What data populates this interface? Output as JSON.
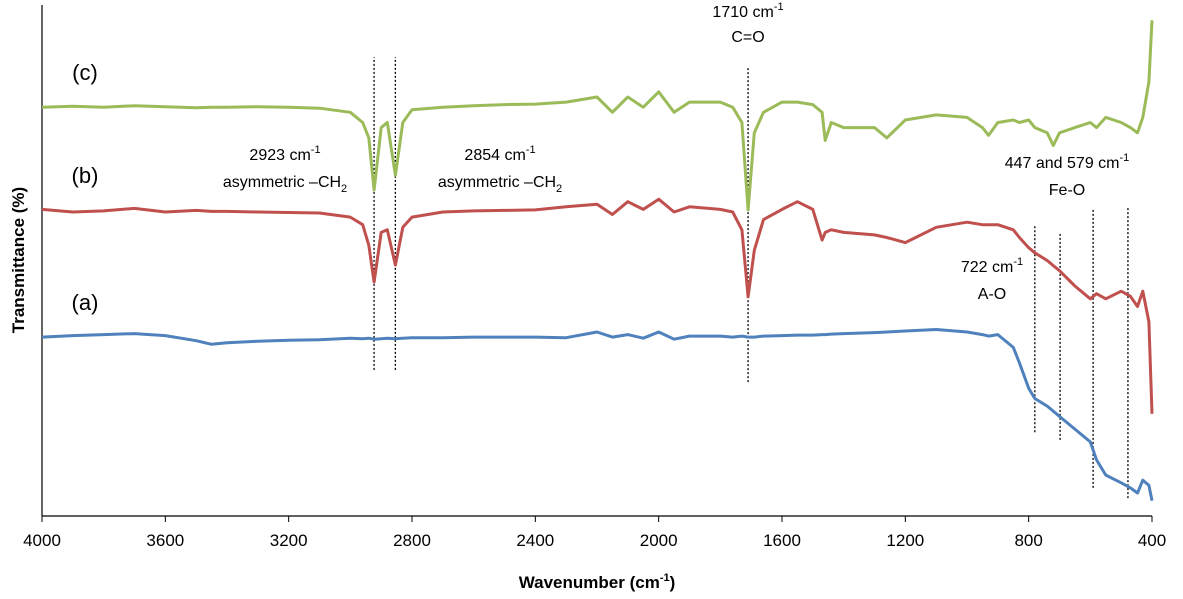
{
  "chart_data": {
    "type": "line",
    "x_label": [
      "Wavenumber (cm",
      "-1",
      ")"
    ],
    "y_label": "Transmittance (%)",
    "xlim": [
      4000,
      400
    ],
    "ylim": [
      0,
      100
    ],
    "xticks": [
      4000,
      3600,
      3200,
      2800,
      2400,
      2000,
      1600,
      1200,
      800,
      400
    ],
    "x": [
      4000,
      3900,
      3800,
      3700,
      3600,
      3500,
      3450,
      3400,
      3300,
      3200,
      3100,
      3000,
      2960,
      2940,
      2923,
      2900,
      2880,
      2854,
      2830,
      2800,
      2700,
      2600,
      2500,
      2400,
      2300,
      2200,
      2150,
      2100,
      2050,
      2000,
      1950,
      1900,
      1800,
      1760,
      1730,
      1710,
      1690,
      1660,
      1600,
      1550,
      1500,
      1470,
      1460,
      1440,
      1400,
      1300,
      1260,
      1200,
      1100,
      1000,
      950,
      930,
      900,
      850,
      830,
      800,
      780,
      740,
      720,
      700,
      650,
      600,
      580,
      550,
      500,
      470,
      447,
      430,
      410,
      400
    ],
    "series": [
      {
        "name": "(c)",
        "color": "#9bbb59",
        "values": [
          80,
          80.2,
          80,
          80.3,
          80.1,
          79.9,
          80,
          80,
          80.1,
          80,
          79.8,
          79,
          77,
          74,
          63.8,
          76,
          77,
          66.7,
          77,
          79.5,
          80,
          80.3,
          80.5,
          80.6,
          81,
          82,
          79,
          82,
          80,
          83,
          79,
          81,
          81,
          80,
          77,
          59.9,
          75,
          79,
          81,
          81,
          80.5,
          79,
          73.5,
          77,
          76,
          76,
          74,
          77.5,
          78.5,
          78,
          76,
          74.5,
          77,
          77.5,
          77,
          77.5,
          76,
          75,
          72.5,
          75,
          76,
          77,
          76,
          78,
          77,
          76,
          75,
          78,
          85,
          97
        ]
      },
      {
        "name": "(b)",
        "color": "#c0504d",
        "values": [
          60,
          59.5,
          59.7,
          60.2,
          59.5,
          59.8,
          59.6,
          59.6,
          59.5,
          59.4,
          59.3,
          58.5,
          57,
          53,
          45.8,
          55.5,
          56,
          49.1,
          56.5,
          58.5,
          59.5,
          59.7,
          59.8,
          59.9,
          60.5,
          61,
          59,
          61.5,
          60,
          62,
          59.5,
          60.5,
          60,
          59.5,
          56,
          42.9,
          52,
          58,
          60,
          61.5,
          60,
          54,
          55.5,
          56,
          55.5,
          55,
          54.5,
          53.5,
          56.5,
          57.5,
          57,
          57,
          57,
          56,
          54.5,
          52.5,
          51.5,
          50,
          49,
          48,
          45,
          42.5,
          43.5,
          42.5,
          44,
          43,
          41,
          44,
          38,
          20
        ]
      },
      {
        "name": "(a)",
        "color": "#4f81bd",
        "values": [
          35,
          35.3,
          35.5,
          35.7,
          35.3,
          34.3,
          33.6,
          33.9,
          34.2,
          34.4,
          34.5,
          34.8,
          34.7,
          34.8,
          34.6,
          34.7,
          34.8,
          34.7,
          34.8,
          34.9,
          34.9,
          35,
          35,
          35,
          34.9,
          36,
          35,
          35.5,
          34.8,
          36,
          34.6,
          35.2,
          35.2,
          35,
          35.2,
          35,
          35,
          35.2,
          35.3,
          35.4,
          35.4,
          35.5,
          35.5,
          35.6,
          35.7,
          35.9,
          36,
          36.2,
          36.5,
          36,
          35.5,
          35.2,
          35.5,
          33,
          30,
          25,
          23,
          21.5,
          20.5,
          19.5,
          17,
          14.5,
          11,
          8,
          6.5,
          5.5,
          4.5,
          7,
          6,
          3
        ]
      }
    ],
    "vlines": [
      {
        "x": 2923,
        "y": [
          28.6,
          89.8
        ]
      },
      {
        "x": 2854,
        "y": [
          28.6,
          89.8
        ]
      },
      {
        "x": 1710,
        "y": [
          26.2,
          87.7
        ]
      },
      {
        "x": 780,
        "y": [
          16.4,
          57
        ]
      },
      {
        "x": 698,
        "y": [
          14.9,
          55.6
        ]
      },
      {
        "x": 591,
        "y": [
          5.5,
          60.3
        ]
      },
      {
        "x": 478,
        "y": [
          3.5,
          60.3
        ]
      }
    ],
    "annotations": [
      {
        "lines": [
          {
            "text": "1710 cm",
            "sup": "-1"
          },
          {
            "text": "C=O"
          }
        ]
      },
      {
        "lines": [
          {
            "text": "2923 cm",
            "sup": "-1"
          },
          {
            "text": "asymmetric –CH",
            "sub": "2"
          }
        ]
      },
      {
        "lines": [
          {
            "text": "2854 cm",
            "sup": "-1"
          },
          {
            "text": "asymmetric –CH",
            "sub": "2"
          }
        ]
      },
      {
        "lines": [
          {
            "text": "447 and 579 cm",
            "sup": "-1"
          },
          {
            "text": "Fe-O"
          }
        ]
      },
      {
        "lines": [
          {
            "text": "722 cm",
            "sup": "-1"
          },
          {
            "text": "A-O"
          }
        ]
      }
    ]
  }
}
